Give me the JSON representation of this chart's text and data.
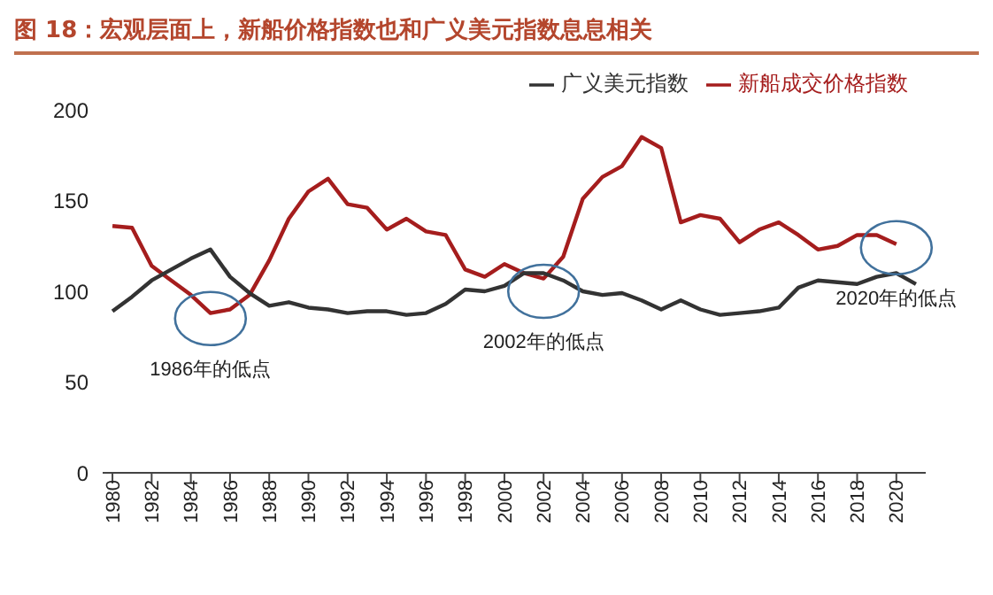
{
  "chart_data": {
    "type": "line",
    "title": "图 18：宏观层面上，新船价格指数也和广义美元指数息息相关",
    "x": [
      1980,
      1981,
      1982,
      1983,
      1984,
      1985,
      1986,
      1987,
      1988,
      1989,
      1990,
      1991,
      1992,
      1993,
      1994,
      1995,
      1996,
      1997,
      1998,
      1999,
      2000,
      2001,
      2002,
      2003,
      2004,
      2005,
      2006,
      2007,
      2008,
      2009,
      2010,
      2011,
      2012,
      2013,
      2014,
      2015,
      2016,
      2017,
      2018,
      2019,
      2020,
      2021
    ],
    "series": [
      {
        "name": "新船成交价格指数",
        "color": "#a51d1d",
        "values": [
          136,
          135,
          114,
          106,
          98,
          88,
          90,
          98,
          117,
          140,
          155,
          162,
          148,
          146,
          134,
          140,
          133,
          131,
          112,
          108,
          115,
          110,
          107,
          119,
          151,
          163,
          169,
          185,
          179,
          138,
          142,
          140,
          127,
          134,
          138,
          131,
          123,
          125,
          131,
          131,
          126,
          null
        ]
      },
      {
        "name": "广义美元指数",
        "color": "#333333",
        "values": [
          89,
          97,
          106,
          112,
          118,
          123,
          108,
          99,
          92,
          94,
          91,
          90,
          88,
          89,
          89,
          87,
          88,
          93,
          101,
          100,
          103,
          110,
          110,
          106,
          100,
          98,
          99,
          95,
          90,
          95,
          90,
          87,
          88,
          89,
          91,
          102,
          106,
          105,
          104,
          108,
          110,
          104
        ]
      }
    ],
    "xlim": [
      1979.5,
      2021.5
    ],
    "xticks": [
      1980,
      1982,
      1984,
      1986,
      1988,
      1990,
      1992,
      1994,
      1996,
      1998,
      2000,
      2002,
      2004,
      2006,
      2008,
      2010,
      2012,
      2014,
      2016,
      2018,
      2020
    ],
    "ylim": [
      0,
      200
    ],
    "yticks": [
      0,
      50,
      100,
      150,
      200
    ],
    "grid": false,
    "legend": "top right",
    "marker": "none",
    "line_style": "solid",
    "annotations": [
      {
        "text": "1986年的低点",
        "x": 1985,
        "y": 85
      },
      {
        "text": "2002年的低点",
        "x": 2002,
        "y": 100
      },
      {
        "text": "2020年的低点",
        "x": 2020,
        "y": 124
      }
    ]
  }
}
